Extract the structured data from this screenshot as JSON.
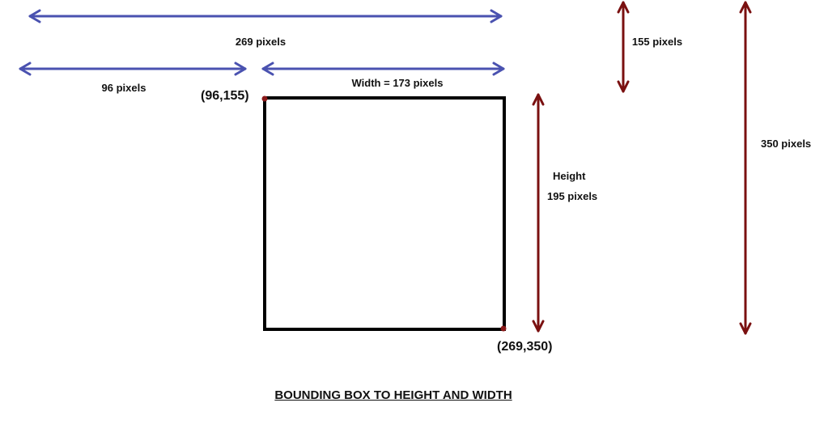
{
  "diagram": {
    "title": "BOUNDING BOX TO HEIGHT AND WIDTH",
    "labels": {
      "total_x": "269 pixels",
      "left_offset": "96 pixels",
      "width": "Width =  173 pixels",
      "top_offset": "155 pixels",
      "height_word": "Height",
      "height_value": "195 pixels",
      "total_y": "350 pixels"
    },
    "corners": {
      "top_left": "(96,155)",
      "bottom_right": "(269,350)"
    },
    "colors": {
      "horizontal_arrows": "#4a52b0",
      "vertical_arrows": "#7a1010",
      "corner_points": "#8b1a1a",
      "box_border": "#000000"
    }
  }
}
